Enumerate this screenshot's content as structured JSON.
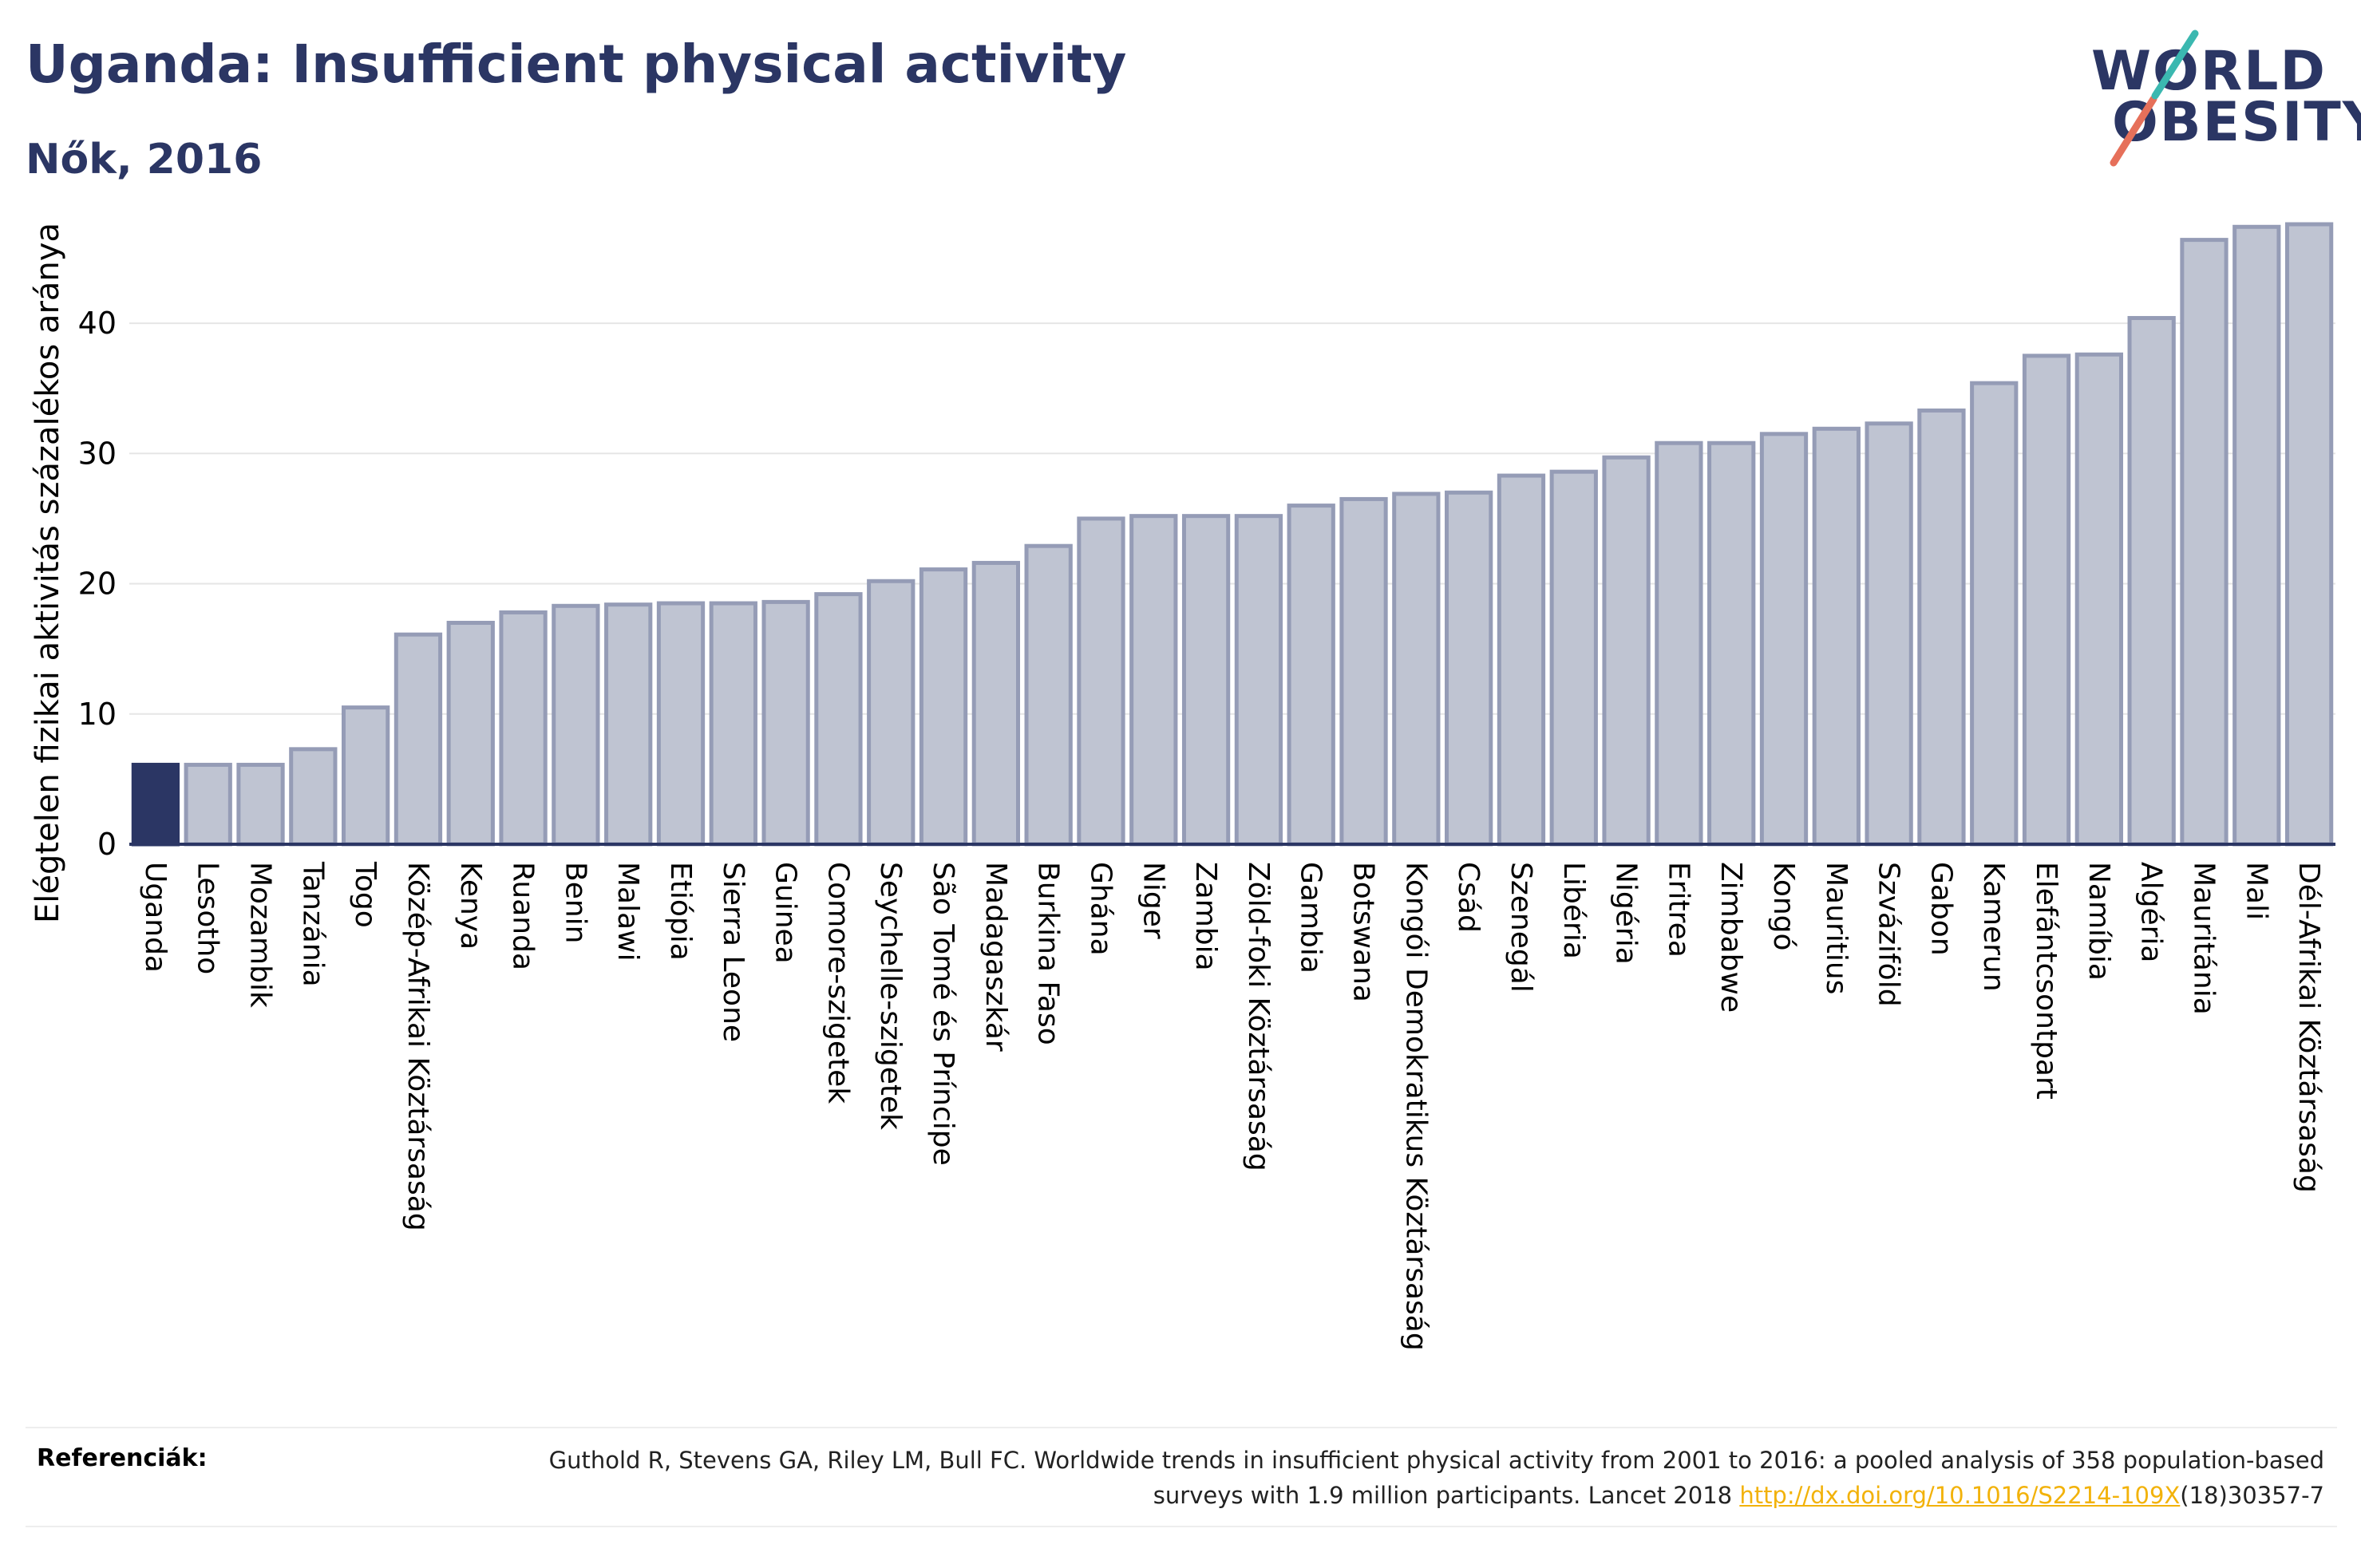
{
  "header": {
    "title": "Uganda: Insufficient physical activity",
    "subtitle": "Nők, 2016"
  },
  "logo": {
    "line1": "WORLD",
    "line2": "OBESITY",
    "accent_colors": [
      "#e6705a",
      "#3bb8b0"
    ]
  },
  "colors": {
    "highlight": "#2b3664",
    "bar": "#bfc4d2",
    "bar_edge": "#959cb6",
    "axis": "#2b3664"
  },
  "chart_data": {
    "type": "bar",
    "categories": [
      "Uganda",
      "Lesotho",
      "Mozambik",
      "Tanzánia",
      "Togo",
      "Közép-Afrikai Köztársaság",
      "Kenya",
      "Ruanda",
      "Benin",
      "Malawi",
      "Etiópia",
      "Sierra Leone",
      "Guinea",
      "Comore-szigetek",
      "Seychelle-szigetek",
      "São Tomé és Príncipe",
      "Madagaszkár",
      "Burkina Faso",
      "Ghána",
      "Niger",
      "Zambia",
      "Zöld-foki Köztársaság",
      "Gambia",
      "Botswana",
      "Kongói Demokratikus Köztársaság",
      "Csád",
      "Szenegál",
      "Libéria",
      "Nigéria",
      "Eritrea",
      "Zimbabwe",
      "Kongó",
      "Mauritius",
      "Szváziföld",
      "Gabon",
      "Kamerun",
      "Elefántcsontpart",
      "Namíbia",
      "Algéria",
      "Mauritánia",
      "Mali",
      "Dél-Afrikai Köztársaság"
    ],
    "values": [
      6.1,
      6.1,
      6.1,
      7.3,
      10.5,
      16.1,
      17.0,
      17.8,
      18.3,
      18.4,
      18.5,
      18.5,
      18.6,
      19.2,
      20.2,
      21.1,
      21.6,
      22.9,
      25.0,
      25.2,
      25.2,
      25.2,
      26.0,
      26.5,
      26.9,
      27.0,
      28.3,
      28.6,
      29.7,
      30.8,
      30.8,
      31.5,
      31.9,
      32.3,
      33.3,
      35.4,
      37.5,
      37.6,
      40.4,
      46.4,
      47.4,
      47.6
    ],
    "highlight_index": 0,
    "ylabel": "Elégtelen fizikai aktivitás százalékos aránya",
    "xlabel": "",
    "yticks": [
      0,
      10,
      20,
      30,
      40
    ],
    "ylim": [
      0,
      49.5
    ],
    "grid": true
  },
  "references": {
    "label": "Referenciák:",
    "text_before": "Guthold R, Stevens GA, Riley LM, Bull FC. Worldwide trends in insufficient physical activity from 2001 to 2016: a pooled analysis of 358 population-based surveys with 1.9 million participants. Lancet 2018 ",
    "link_text": "http://dx.doi.org/10.1016/S2214-109X",
    "text_after": "(18)30357-7"
  }
}
